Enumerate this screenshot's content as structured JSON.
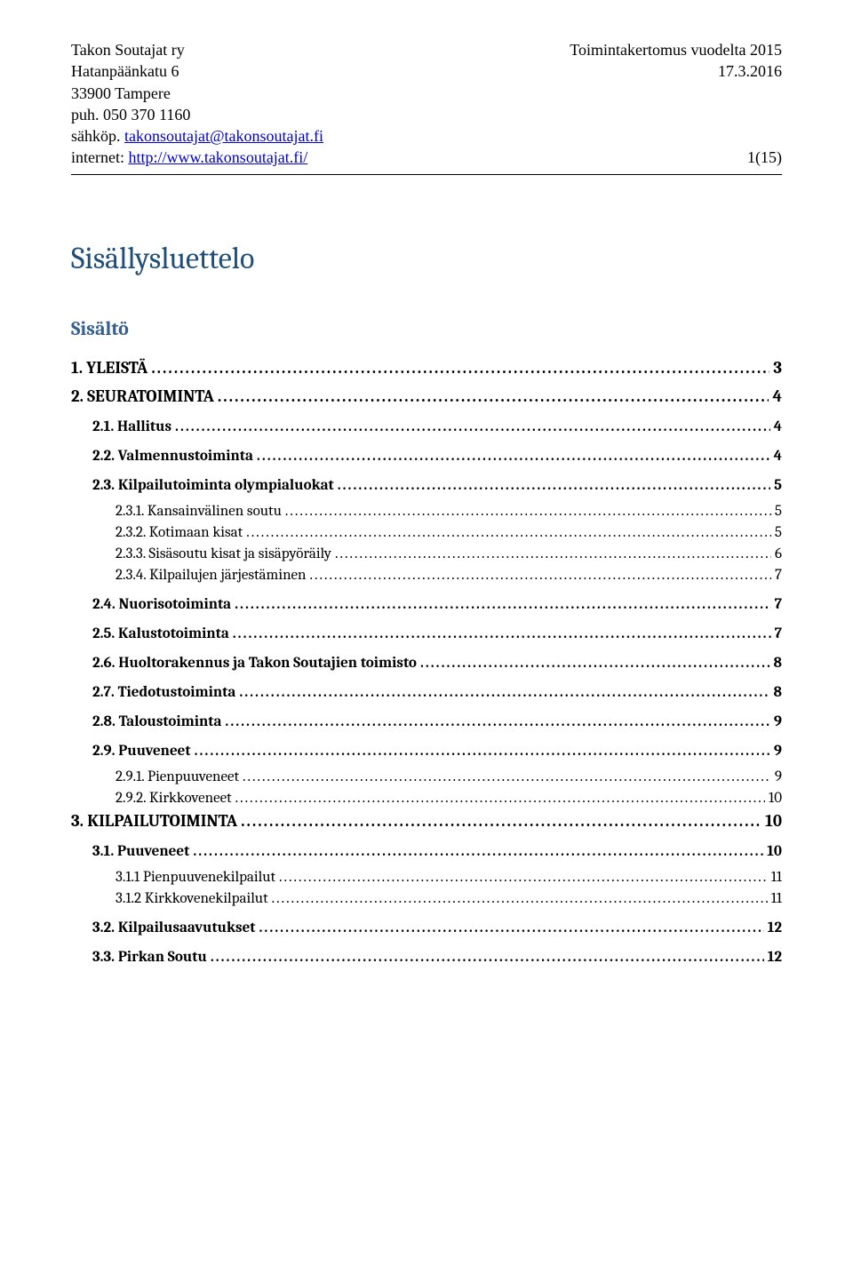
{
  "header": {
    "org": "Takon Soutajat ry",
    "street": "Hatanpäänkatu 6",
    "city": "33900 Tampere",
    "phone": "puh. 050 370 1160",
    "email_label": "sähköp. ",
    "email": "takonsoutajat@takonsoutajat.fi",
    "web_label": "internet: ",
    "web": "http://www.takonsoutajat.fi/",
    "report_title": "Toimintakertomus vuodelta 2015",
    "date": "17.3.2016",
    "page_num": "1(15)"
  },
  "toc": {
    "title": "Sisällysluettelo",
    "subtitle": "Sisältö",
    "items": [
      {
        "label": "1. YLEISTÄ",
        "page": "3",
        "level": 1
      },
      {
        "label": "2. SEURATOIMINTA",
        "page": "4",
        "level": 1
      },
      {
        "label": "2.1. Hallitus",
        "page": "4",
        "level": 2
      },
      {
        "label": "2.2. Valmennustoiminta",
        "page": "4",
        "level": 2
      },
      {
        "label": "2.3. Kilpailutoiminta olympialuokat",
        "page": "5",
        "level": 2
      },
      {
        "label": "2.3.1. Kansainvälinen soutu",
        "page": "5",
        "level": 3
      },
      {
        "label": "2.3.2. Kotimaan kisat",
        "page": "5",
        "level": 3
      },
      {
        "label": "2.3.3. Sisäsoutu kisat ja sisäpyöräily",
        "page": "6",
        "level": 3
      },
      {
        "label": "2.3.4. Kilpailujen järjestäminen",
        "page": "7",
        "level": 3
      },
      {
        "label": "2.4. Nuorisotoiminta",
        "page": "7",
        "level": 2
      },
      {
        "label": "2.5. Kalustotoiminta",
        "page": "7",
        "level": 2
      },
      {
        "label": "2.6. Huoltorakennus ja Takon Soutajien toimisto",
        "page": "8",
        "level": 2
      },
      {
        "label": "2.7. Tiedotustoiminta",
        "page": "8",
        "level": 2
      },
      {
        "label": "2.8. Taloustoiminta",
        "page": "9",
        "level": 2
      },
      {
        "label": "2.9. Puuveneet",
        "page": "9",
        "level": 2
      },
      {
        "label": "2.9.1. Pienpuuveneet",
        "page": "9",
        "level": 3
      },
      {
        "label": "2.9.2. Kirkkoveneet",
        "page": "10",
        "level": 3
      },
      {
        "label": "3. KILPAILUTOIMINTA",
        "page": "10",
        "level": 1
      },
      {
        "label": "3.1. Puuveneet",
        "page": "10",
        "level": 2
      },
      {
        "label": "3.1.1 Pienpuuvenekilpailut",
        "page": "11",
        "level": 3
      },
      {
        "label": "3.1.2 Kirkkovenekilpailut",
        "page": "11",
        "level": 3
      },
      {
        "label": "3.2. Kilpailusaavutukset",
        "page": "12",
        "level": 2
      },
      {
        "label": "3.3. Pirkan Soutu",
        "page": "12",
        "level": 2
      }
    ]
  },
  "colors": {
    "title": "#1f4e79",
    "subtitle": "#365f91",
    "link": "#0000cc",
    "text": "#000000",
    "bg": "#ffffff"
  },
  "leader_dots": "........................................................................................................................................................................................................................................................"
}
